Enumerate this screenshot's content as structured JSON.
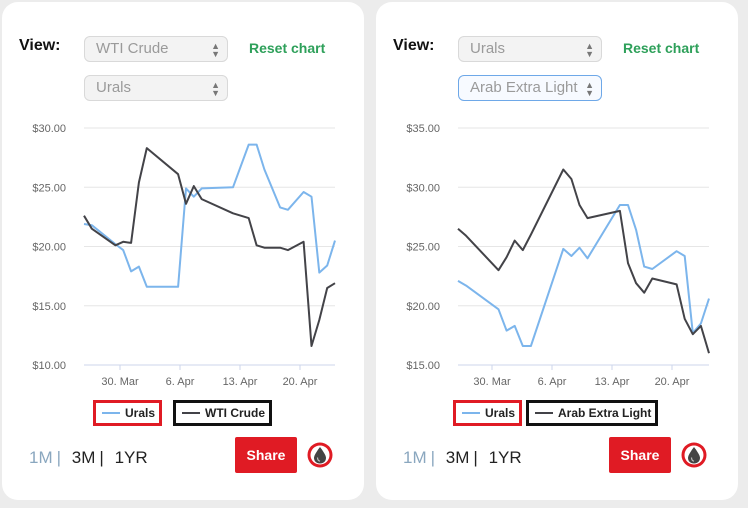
{
  "panels": [
    {
      "view_label": "View:",
      "select_primary": "WTI Crude",
      "select_secondary": "Urals",
      "reset_label": "Reset chart",
      "ranges": [
        "1M",
        "3M",
        "1YR"
      ],
      "active_range": "1M",
      "share_label": "Share",
      "legend": [
        "Urals",
        "WTI Crude"
      ],
      "chart_data": {
        "type": "line",
        "y_ticks": [
          "$30.00",
          "$25.00",
          "$20.00",
          "$15.00",
          "$10.00"
        ],
        "ylim": [
          10,
          30
        ],
        "x_ticks": [
          "30. Mar",
          "6. Apr",
          "13. Apr",
          "20. Apr"
        ],
        "series": [
          {
            "name": "Urals",
            "color": "#7cb5ec",
            "values": [
              21.9,
              21.8,
              20.2,
              19.7,
              17.9,
              18.3,
              16.6,
              16.6,
              24.9,
              24.2,
              24.9,
              25.0,
              28.6,
              28.6,
              26.5,
              23.3,
              23.1,
              24.6,
              24.2,
              17.8,
              18.4,
              20.5
            ]
          },
          {
            "name": "WTI Crude",
            "color": "#434348",
            "values": [
              22.6,
              21.5,
              20.1,
              20.4,
              20.3,
              25.4,
              28.3,
              26.1,
              23.6,
              25.1,
              24.0,
              22.8,
              22.4,
              20.1,
              19.9,
              19.9,
              19.7,
              20.4,
              11.6,
              13.8,
              16.5,
              16.9
            ]
          }
        ],
        "x_positions": [
          0,
          1,
          4,
          5,
          6,
          7,
          8,
          12,
          13,
          14,
          15,
          19,
          21,
          22,
          23,
          25,
          26,
          28,
          29,
          30,
          31,
          32
        ]
      }
    },
    {
      "view_label": "View:",
      "select_primary": "Urals",
      "select_secondary": "Arab Extra Light",
      "reset_label": "Reset chart",
      "ranges": [
        "1M",
        "3M",
        "1YR"
      ],
      "active_range": "1M",
      "share_label": "Share",
      "legend": [
        "Urals",
        "Arab Extra Light"
      ],
      "chart_data": {
        "type": "line",
        "y_ticks": [
          "$35.00",
          "$30.00",
          "$25.00",
          "$20.00",
          "$15.00"
        ],
        "ylim": [
          15,
          35
        ],
        "x_ticks": [
          "30. Mar",
          "6. Apr",
          "13. Apr",
          "20. Apr"
        ],
        "series": [
          {
            "name": "Urals",
            "color": "#7cb5ec",
            "values": [
              22.1,
              21.7,
              19.7,
              17.9,
              18.3,
              16.6,
              16.6,
              24.8,
              24.2,
              24.9,
              24.0,
              28.5,
              28.5,
              26.4,
              23.3,
              23.1,
              24.6,
              24.2,
              17.7,
              18.5,
              20.6
            ]
          },
          {
            "name": "Arab Extra Light",
            "color": "#434348",
            "values": [
              26.5,
              25.9,
              23.0,
              24.1,
              25.5,
              24.7,
              26.0,
              31.5,
              30.7,
              28.5,
              27.4,
              28.0,
              23.6,
              21.9,
              21.1,
              22.3,
              21.8,
              18.9,
              17.6,
              18.3,
              16.0
            ]
          }
        ],
        "x_positions": [
          0,
          1,
          5,
          6,
          7,
          8,
          9,
          13,
          14,
          15,
          16,
          20,
          21,
          22,
          23,
          24,
          27,
          28,
          29,
          30,
          31
        ]
      }
    }
  ]
}
